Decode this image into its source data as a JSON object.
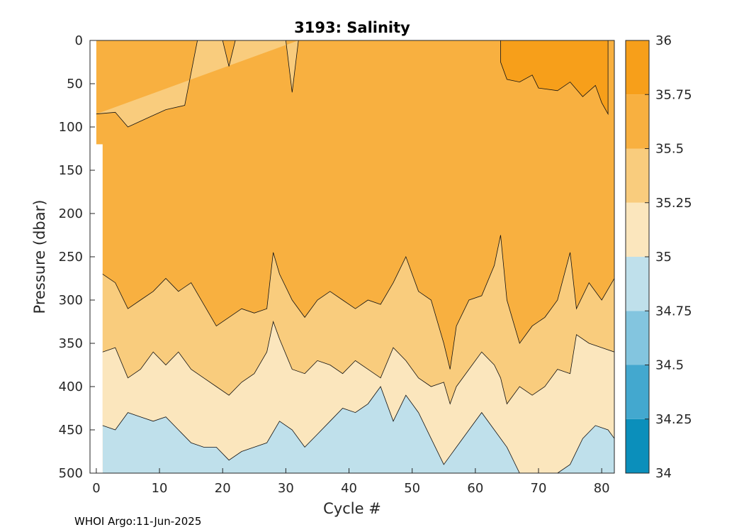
{
  "chart_data": {
    "type": "heatmap",
    "subtype": "filled-contour",
    "title": "3193:  Salinity",
    "xlabel": "Cycle #",
    "ylabel": "Pressure (dbar)",
    "xlim": [
      -1,
      82
    ],
    "ylim": [
      0,
      500
    ],
    "y_reversed": true,
    "xticks": [
      0,
      10,
      20,
      30,
      40,
      50,
      60,
      70,
      80
    ],
    "yticks": [
      0,
      50,
      100,
      150,
      200,
      250,
      300,
      350,
      400,
      450,
      500
    ],
    "grid": false,
    "colorbar": {
      "levels": [
        34,
        34.25,
        34.5,
        34.75,
        35,
        35.25,
        35.5,
        35.75,
        36
      ],
      "tick_labels": [
        "34",
        "34.25",
        "34.5",
        "34.75",
        "35",
        "35.25",
        "35.5",
        "35.75",
        "36"
      ],
      "colors": [
        "#0b8fbb",
        "#43a8cf",
        "#83c5df",
        "#bfe0eb",
        "#fbe6bd",
        "#f9cc7d",
        "#f8b040",
        "#f79f1a"
      ]
    },
    "contour_boundaries": [
      {
        "name": "35.75",
        "points": [
          [
            64,
            0
          ],
          [
            64,
            25
          ],
          [
            65,
            45
          ],
          [
            67,
            48
          ],
          [
            69,
            40
          ],
          [
            70,
            55
          ],
          [
            73,
            58
          ],
          [
            75,
            48
          ],
          [
            77,
            65
          ],
          [
            79,
            52
          ],
          [
            80,
            72
          ],
          [
            81,
            85
          ],
          [
            81,
            0
          ]
        ]
      },
      {
        "name": "35.5",
        "points": [
          [
            0,
            85
          ],
          [
            3,
            83
          ],
          [
            5,
            100
          ],
          [
            8,
            90
          ],
          [
            11,
            80
          ],
          [
            14,
            75
          ],
          [
            16,
            0
          ],
          [
            20,
            0
          ],
          [
            21,
            30
          ],
          [
            22,
            0
          ],
          [
            30,
            0
          ],
          [
            31,
            60
          ],
          [
            32,
            0
          ]
        ]
      },
      {
        "name": "35.25",
        "points": [
          [
            1,
            270
          ],
          [
            3,
            280
          ],
          [
            5,
            310
          ],
          [
            7,
            300
          ],
          [
            9,
            290
          ],
          [
            11,
            275
          ],
          [
            13,
            290
          ],
          [
            15,
            280
          ],
          [
            17,
            305
          ],
          [
            19,
            330
          ],
          [
            21,
            320
          ],
          [
            23,
            310
          ],
          [
            25,
            315
          ],
          [
            27,
            310
          ],
          [
            28,
            245
          ],
          [
            29,
            270
          ],
          [
            31,
            300
          ],
          [
            33,
            320
          ],
          [
            35,
            300
          ],
          [
            37,
            290
          ],
          [
            39,
            300
          ],
          [
            41,
            310
          ],
          [
            43,
            300
          ],
          [
            45,
            305
          ],
          [
            47,
            280
          ],
          [
            49,
            250
          ],
          [
            51,
            290
          ],
          [
            53,
            300
          ],
          [
            55,
            350
          ],
          [
            56,
            380
          ],
          [
            57,
            330
          ],
          [
            59,
            300
          ],
          [
            61,
            295
          ],
          [
            63,
            260
          ],
          [
            64,
            225
          ],
          [
            65,
            300
          ],
          [
            67,
            350
          ],
          [
            69,
            330
          ],
          [
            71,
            320
          ],
          [
            73,
            300
          ],
          [
            75,
            245
          ],
          [
            76,
            310
          ],
          [
            78,
            280
          ],
          [
            80,
            300
          ],
          [
            82,
            275
          ],
          [
            82,
            300
          ]
        ]
      },
      {
        "name": "35",
        "points": [
          [
            1,
            360
          ],
          [
            3,
            355
          ],
          [
            5,
            390
          ],
          [
            7,
            380
          ],
          [
            9,
            360
          ],
          [
            11,
            375
          ],
          [
            13,
            360
          ],
          [
            15,
            380
          ],
          [
            17,
            390
          ],
          [
            19,
            400
          ],
          [
            21,
            410
          ],
          [
            23,
            395
          ],
          [
            25,
            385
          ],
          [
            27,
            360
          ],
          [
            28,
            325
          ],
          [
            29,
            345
          ],
          [
            31,
            380
          ],
          [
            33,
            385
          ],
          [
            35,
            370
          ],
          [
            37,
            375
          ],
          [
            39,
            385
          ],
          [
            41,
            370
          ],
          [
            43,
            380
          ],
          [
            45,
            390
          ],
          [
            47,
            355
          ],
          [
            49,
            370
          ],
          [
            51,
            390
          ],
          [
            53,
            400
          ],
          [
            55,
            395
          ],
          [
            56,
            420
          ],
          [
            57,
            400
          ],
          [
            59,
            380
          ],
          [
            61,
            360
          ],
          [
            63,
            375
          ],
          [
            64,
            390
          ],
          [
            65,
            420
          ],
          [
            67,
            400
          ],
          [
            69,
            410
          ],
          [
            71,
            400
          ],
          [
            73,
            380
          ],
          [
            75,
            385
          ],
          [
            76,
            340
          ],
          [
            78,
            350
          ],
          [
            80,
            355
          ],
          [
            82,
            360
          ]
        ]
      },
      {
        "name": "34.75",
        "points": [
          [
            1,
            445
          ],
          [
            3,
            450
          ],
          [
            5,
            430
          ],
          [
            7,
            435
          ],
          [
            9,
            440
          ],
          [
            11,
            435
          ],
          [
            13,
            450
          ],
          [
            15,
            465
          ],
          [
            17,
            470
          ],
          [
            19,
            470
          ],
          [
            21,
            485
          ],
          [
            23,
            475
          ],
          [
            25,
            470
          ],
          [
            27,
            465
          ],
          [
            29,
            440
          ],
          [
            31,
            450
          ],
          [
            33,
            470
          ],
          [
            35,
            455
          ],
          [
            37,
            440
          ],
          [
            39,
            425
          ],
          [
            41,
            430
          ],
          [
            43,
            420
          ],
          [
            45,
            400
          ],
          [
            47,
            440
          ],
          [
            49,
            410
          ],
          [
            51,
            430
          ],
          [
            53,
            460
          ],
          [
            55,
            490
          ],
          [
            57,
            470
          ],
          [
            59,
            450
          ],
          [
            61,
            430
          ],
          [
            63,
            450
          ],
          [
            65,
            470
          ],
          [
            67,
            500
          ],
          [
            69,
            500
          ],
          [
            71,
            500
          ],
          [
            73,
            500
          ],
          [
            75,
            490
          ],
          [
            77,
            460
          ],
          [
            79,
            445
          ],
          [
            81,
            450
          ],
          [
            82,
            460
          ]
        ]
      }
    ]
  }
}
